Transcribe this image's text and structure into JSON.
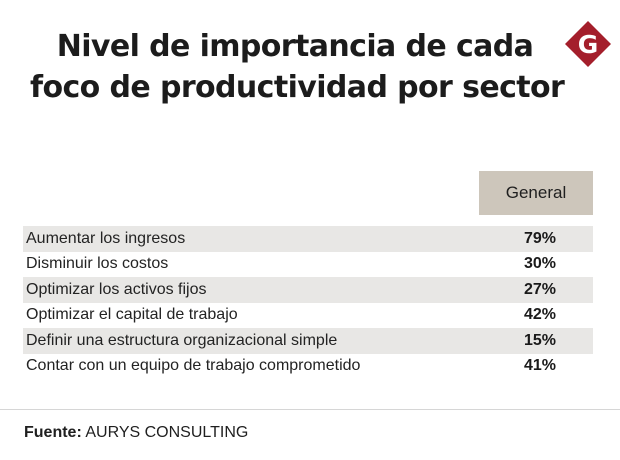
{
  "title": {
    "line1": "Nivel de importancia de cada",
    "line2": "foco de productividad por sector"
  },
  "logo": {
    "letter": "G",
    "color": "#a41e2b"
  },
  "chart_data": {
    "type": "table",
    "title": "Nivel de importancia de cada foco de productividad por sector",
    "columns": [
      "",
      "General"
    ],
    "rows": [
      {
        "label": "Aumentar los ingresos",
        "value": "79%"
      },
      {
        "label": "Disminuir los costos",
        "value": "30%"
      },
      {
        "label": "Optimizar los activos fijos",
        "value": "27%"
      },
      {
        "label": "Optimizar el capital de trabajo",
        "value": "42%"
      },
      {
        "label": "Definir una estructura organizacional simple",
        "value": "15%"
      },
      {
        "label": "Contar con un equipo de trabajo comprometido",
        "value": "41%"
      }
    ]
  },
  "source": {
    "label": "Fuente:",
    "text": "AURYS CONSULTING"
  }
}
